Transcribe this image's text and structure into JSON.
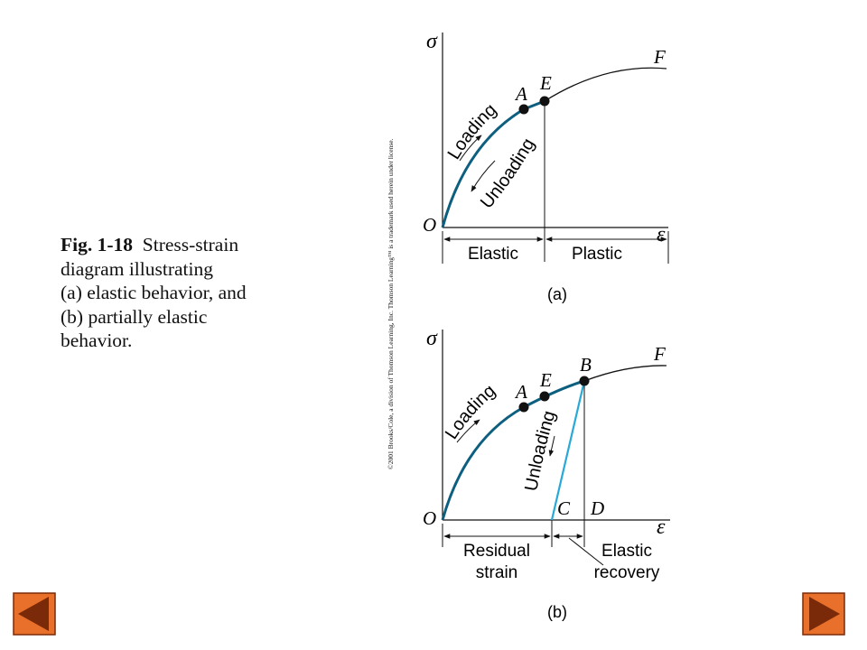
{
  "caption": {
    "figure": "Fig. 1-18",
    "line1": "Stress-strain",
    "line2": "diagram illustrating",
    "line3": "(a) elastic behavior, and",
    "line4": "(b) partially elastic",
    "line5": "behavior."
  },
  "copyright": "©2001 Brooks/Cole, a division of Thomson Learning, Inc.  Thomson Learning™ is a trademark used herein under license.",
  "diagram_a": {
    "y_axis": "σ",
    "x_axis": "ε",
    "origin": "O",
    "point_a": "A",
    "point_e": "E",
    "point_f": "F",
    "loading": "Loading",
    "unloading": "Unloading",
    "region_elastic": "Elastic",
    "region_plastic": "Plastic",
    "sublabel": "(a)"
  },
  "diagram_b": {
    "y_axis": "σ",
    "x_axis": "ε",
    "origin": "O",
    "point_a": "A",
    "point_e": "E",
    "point_b": "B",
    "point_f": "F",
    "point_c": "C",
    "point_d": "D",
    "loading": "Loading",
    "unloading": "Unloading",
    "residual_1": "Residual",
    "residual_2": "strain",
    "recovery_1": "Elastic",
    "recovery_2": "recovery",
    "sublabel": "(b)"
  },
  "colors": {
    "loading_curve": "#0d5f7f",
    "unloading_line": "#29a9d8",
    "nav_fill": "#e8702a",
    "nav_arrow": "#7a2a08"
  },
  "icons": {
    "prev": "triangle-left-icon",
    "next": "triangle-right-icon"
  }
}
